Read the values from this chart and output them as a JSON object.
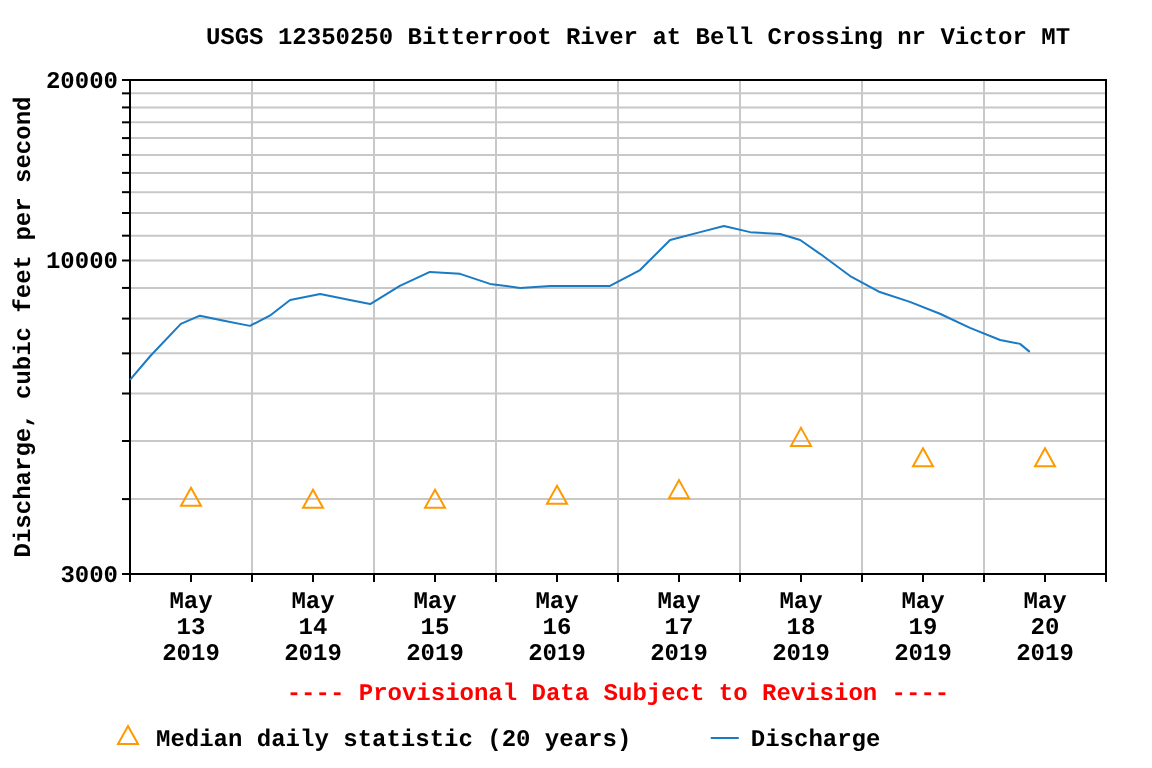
{
  "chart_data": {
    "type": "line",
    "title": "USGS 12350250 Bitterroot River at Bell Crossing nr Victor MT",
    "ylabel": "Discharge, cubic feet per second",
    "annotations": [
      "---- Provisional Data Subject to Revision ----"
    ],
    "log": "y",
    "grid": true,
    "legend": "bottom",
    "xlim": [
      "2019-05-13T00:00",
      "2019-05-21T00:00"
    ],
    "xticks": [
      {
        "value": "2019-05-13T00:00",
        "label": null
      },
      {
        "value": "2019-05-13T12:00",
        "label": "May\n13\n2019"
      },
      {
        "value": "2019-05-14T00:00",
        "label": null
      },
      {
        "value": "2019-05-14T12:00",
        "label": "May\n14\n2019"
      },
      {
        "value": "2019-05-15T00:00",
        "label": null
      },
      {
        "value": "2019-05-15T12:00",
        "label": "May\n15\n2019"
      },
      {
        "value": "2019-05-16T00:00",
        "label": null
      },
      {
        "value": "2019-05-16T12:00",
        "label": "May\n16\n2019"
      },
      {
        "value": "2019-05-17T00:00",
        "label": null
      },
      {
        "value": "2019-05-17T12:00",
        "label": "May\n17\n2019"
      },
      {
        "value": "2019-05-18T00:00",
        "label": null
      },
      {
        "value": "2019-05-18T12:00",
        "label": "May\n18\n2019"
      },
      {
        "value": "2019-05-19T00:00",
        "label": null
      },
      {
        "value": "2019-05-19T12:00",
        "label": "May\n19\n2019"
      },
      {
        "value": "2019-05-20T00:00",
        "label": null
      },
      {
        "value": "2019-05-20T12:00",
        "label": "May\n20\n2019"
      },
      {
        "value": "2019-05-21T00:00",
        "label": null
      }
    ],
    "ylim": [
      3000,
      20000
    ],
    "yticks": [
      3000,
      {
        "value": 4000,
        "label": null
      },
      {
        "value": 5000,
        "label": null
      },
      {
        "value": 6000,
        "label": null
      },
      {
        "value": 7000,
        "label": null
      },
      {
        "value": 8000,
        "label": null
      },
      {
        "value": 9000,
        "label": null
      },
      10000,
      {
        "value": 11000,
        "label": null
      },
      {
        "value": 12000,
        "label": null
      },
      {
        "value": 13000,
        "label": null
      },
      {
        "value": 14000,
        "label": null
      },
      {
        "value": 15000,
        "label": null
      },
      {
        "value": 16000,
        "label": null
      },
      {
        "value": 17000,
        "label": null
      },
      {
        "value": 18000,
        "label": null
      },
      {
        "value": 19000,
        "label": null
      },
      20000
    ],
    "series": [
      {
        "name": "Median daily statistic (20 years)",
        "type": "scatter",
        "marker": "triangle",
        "color": "#ff9900",
        "x": [
          "2019-05-13T12:00",
          "2019-05-14T12:00",
          "2019-05-15T12:00",
          "2019-05-16T12:00",
          "2019-05-17T12:00",
          "2019-05-18T12:00",
          "2019-05-19T12:00",
          "2019-05-20T12:00"
        ],
        "values": [
          4020,
          3990,
          3990,
          4050,
          4140,
          5060,
          4680,
          4680
        ]
      },
      {
        "name": "Discharge",
        "color": "#1a7ac4",
        "x": [
          "2019-05-13T00:00",
          "2019-05-13T04:00",
          "2019-05-13T10:00",
          "2019-05-13T13:45",
          "2019-05-13T17:45",
          "2019-05-13T23:35",
          "2019-05-14T03:30",
          "2019-05-14T07:30",
          "2019-05-14T13:25",
          "2019-05-14T19:15",
          "2019-05-14T23:15",
          "2019-05-15T05:05",
          "2019-05-15T11:00",
          "2019-05-15T16:55",
          "2019-05-15T22:50",
          "2019-05-16T04:45",
          "2019-05-16T10:40",
          "2019-05-16T16:30",
          "2019-05-16T22:25",
          "2019-05-17T04:20",
          "2019-05-17T10:15",
          "2019-05-17T16:10",
          "2019-05-17T20:50",
          "2019-05-18T02:00",
          "2019-05-18T07:55",
          "2019-05-18T11:50",
          "2019-05-18T15:45",
          "2019-05-18T21:40",
          "2019-05-19T03:30",
          "2019-05-19T09:25",
          "2019-05-19T15:20",
          "2019-05-19T21:15",
          "2019-05-20T03:10",
          "2019-05-20T07:05",
          "2019-05-20T09:00"
        ],
        "values": [
          6320,
          6930,
          7840,
          8090,
          7960,
          7780,
          8090,
          8590,
          8790,
          8590,
          8460,
          9070,
          9570,
          9500,
          9140,
          9000,
          9070,
          9070,
          9070,
          9640,
          10820,
          11150,
          11420,
          11150,
          11070,
          10820,
          10260,
          9420,
          8860,
          8530,
          8150,
          7720,
          7370,
          7260,
          7040
        ]
      }
    ]
  }
}
